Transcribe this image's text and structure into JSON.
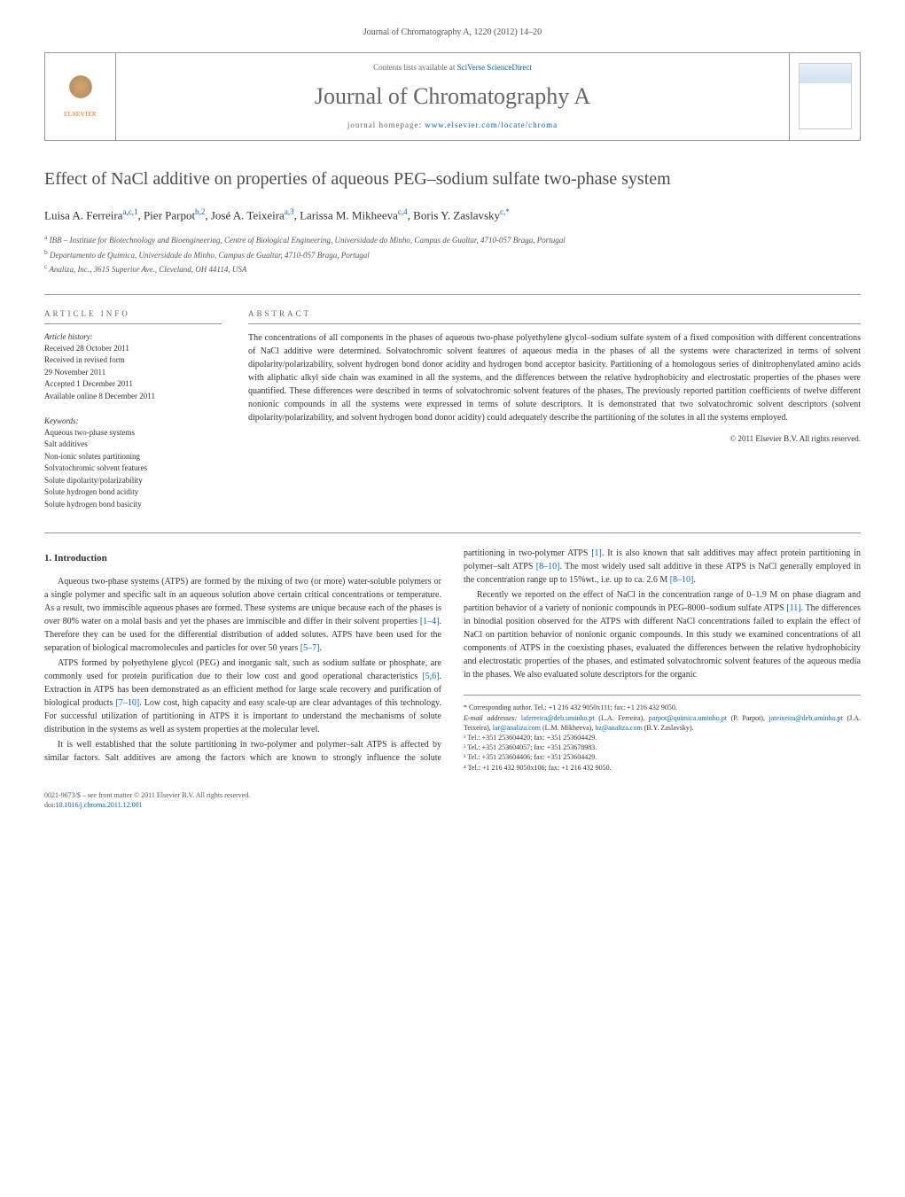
{
  "journal_ref": "Journal of Chromatography A, 1220 (2012) 14–20",
  "header": {
    "publisher": "ELSEVIER",
    "contents_prefix": "Contents lists available at ",
    "contents_link": "SciVerse ScienceDirect",
    "journal_title": "Journal of Chromatography A",
    "homepage_prefix": "journal homepage: ",
    "homepage_link": "www.elsevier.com/locate/chroma"
  },
  "article": {
    "title": "Effect of NaCl additive on properties of aqueous PEG–sodium sulfate two-phase system",
    "authors_html": "Luisa A. Ferreira",
    "authors": [
      {
        "name": "Luisa A. Ferreira",
        "sup": "a,c,1"
      },
      {
        "name": "Pier Parpot",
        "sup": "b,2"
      },
      {
        "name": "José A. Teixeira",
        "sup": "a,3"
      },
      {
        "name": "Larissa M. Mikheeva",
        "sup": "c,4"
      },
      {
        "name": "Boris Y. Zaslavsky",
        "sup": "c,*"
      }
    ],
    "affiliations": [
      {
        "sup": "a",
        "text": "IBB – Institute for Biotechnology and Bioengineering, Centre of Biological Engineering, Universidade do Minho, Campus de Gualtar, 4710-057 Braga, Portugal"
      },
      {
        "sup": "b",
        "text": "Departamento de Química, Universidade do Minho, Campus de Gualtar, 4710-057 Braga, Portugal"
      },
      {
        "sup": "c",
        "text": "Analiza, Inc., 3615 Superior Ave., Cleveland, OH 44114, USA"
      }
    ]
  },
  "info": {
    "heading": "ARTICLE INFO",
    "history_label": "Article history:",
    "history": [
      "Received 28 October 2011",
      "Received in revised form",
      "29 November 2011",
      "Accepted 1 December 2011",
      "Available online 8 December 2011"
    ],
    "keywords_label": "Keywords:",
    "keywords": [
      "Aqueous two-phase systems",
      "Salt additives",
      "Non-ionic solutes partitioning",
      "Solvatochromic solvent features",
      "Solute dipolarity/polarizability",
      "Solute hydrogen bond acidity",
      "Solute hydrogen bond basicity"
    ]
  },
  "abstract": {
    "heading": "ABSTRACT",
    "text": "The concentrations of all components in the phases of aqueous two-phase polyethylene glycol–sodium sulfate system of a fixed composition with different concentrations of NaCl additive were determined. Solvatochromic solvent features of aqueous media in the phases of all the systems were characterized in terms of solvent dipolarity/polarizability, solvent hydrogen bond donor acidity and hydrogen bond acceptor basicity. Partitioning of a homologous series of dinitrophenylated amino acids with aliphatic alkyl side chain was examined in all the systems, and the differences between the relative hydrophobicity and electrostatic properties of the phases were quantified. These differences were described in terms of solvatochromic solvent features of the phases. The previously reported partition coefficients of twelve different nonionic compounds in all the systems were expressed in terms of solute descriptors. It is demonstrated that two solvatochromic solvent descriptors (solvent dipolarity/polarizability, and solvent hydrogen bond donor acidity) could adequately describe the partitioning of the solutes in all the systems employed.",
    "copyright": "© 2011 Elsevier B.V. All rights reserved."
  },
  "body": {
    "section_heading": "1. Introduction",
    "p1": "Aqueous two-phase systems (ATPS) are formed by the mixing of two (or more) water-soluble polymers or a single polymer and specific salt in an aqueous solution above certain critical concentrations or temperature. As a result, two immiscible aqueous phases are formed. These systems are unique because each of the phases is over 80% water on a molal basis and yet the phases are immiscible and differ in their solvent properties ",
    "p1_cite": "[1–4]",
    "p1b": ". Therefore they can be used for the differential distribution of added solutes. ATPS have been used for the separation of biological macromolecules and particles for over 50 years ",
    "p1_cite2": "[5–7]",
    "p1c": ".",
    "p2": "ATPS formed by polyethylene glycol (PEG) and inorganic salt, such as sodium sulfate or phosphate, are commonly used for protein purification due to their low cost and good operational characteristics ",
    "p2_cite": "[5,6]",
    "p2b": ". Extraction in ATPS has been demonstrated as ",
    "p3": "an efficient method for large scale recovery and purification of biological products ",
    "p3_cite": "[7–10]",
    "p3b": ". Low cost, high capacity and easy scale-up are clear advantages of this technology. For successful utilization of partitioning in ATPS it is important to understand the mechanisms of solute distribution in the systems as well as system properties at the molecular level.",
    "p4": "It is well established that the solute partitioning in two-polymer and polymer–salt ATPS is affected by similar factors. Salt additives are among the factors which are known to strongly influence the solute partitioning in two-polymer ATPS ",
    "p4_cite": "[1]",
    "p4b": ". It is also known that salt additives may affect protein partitioning in polymer–salt ATPS ",
    "p4_cite2": "[8–10]",
    "p4c": ". The most widely used salt additive in these ATPS is NaCl generally employed in the concentration range up to 15%wt., i.e. up to ca. 2.6 M ",
    "p4_cite3": "[8–10]",
    "p4d": ".",
    "p5": "Recently we reported on the effect of NaCl in the concentration range of 0–1.9 M on phase diagram and partition behavior of a variety of nonionic compounds in PEG-8000–sodium sulfate ATPS ",
    "p5_cite": "[11]",
    "p5b": ". The differences in binodial position observed for the ATPS with different NaCl concentrations failed to explain the effect of NaCl on partition behavior of nonionic organic compounds. In this study we examined concentrations of all components of ATPS in the coexisting phases, evaluated the differences between the relative hydrophobicity and electrostatic properties of the phases, and estimated solvatochromic solvent features of the aqueous media in the phases. We also evaluated solute descriptors for the organic"
  },
  "footnotes": {
    "corr": "* Corresponding author. Tel.: +1 216 432 9050x111; fax: +1 216 432 9050.",
    "email_label": "E-mail addresses: ",
    "emails": [
      {
        "addr": "laferreira@deb.uminho.pt",
        "who": " (L.A. Ferreira),"
      },
      {
        "addr": "parpot@quimica.uminho.pt",
        "who": " (P. Parpot), "
      },
      {
        "addr": "jateixeira@deb.uminho.pt",
        "who": " (J.A. Teixeira),"
      },
      {
        "addr": "lar@analiza.com",
        "who": " (L.M. Mikheeva), "
      },
      {
        "addr": "bz@analiza.com",
        "who": " (B.Y. Zaslavsky)."
      }
    ],
    "tels": [
      "¹ Tel.: +351 253604420; fax: +351 253604429.",
      "² Tel.: +351 253604057; fax: +351 253678983.",
      "³ Tel.: +351 253604406; fax: +351 253604429.",
      "⁴ Tel.: +1 216 432 9050x106; fax: +1 216 432 9050."
    ]
  },
  "footer": {
    "left1": "0021-9673/$ – see front matter © 2011 Elsevier B.V. All rights reserved.",
    "left2_prefix": "doi:",
    "left2_link": "10.1016/j.chroma.2011.12.001"
  },
  "colors": {
    "link": "#0066cc",
    "text": "#333333",
    "muted": "#666666",
    "border": "#999999",
    "publisher": "#ff6600"
  }
}
